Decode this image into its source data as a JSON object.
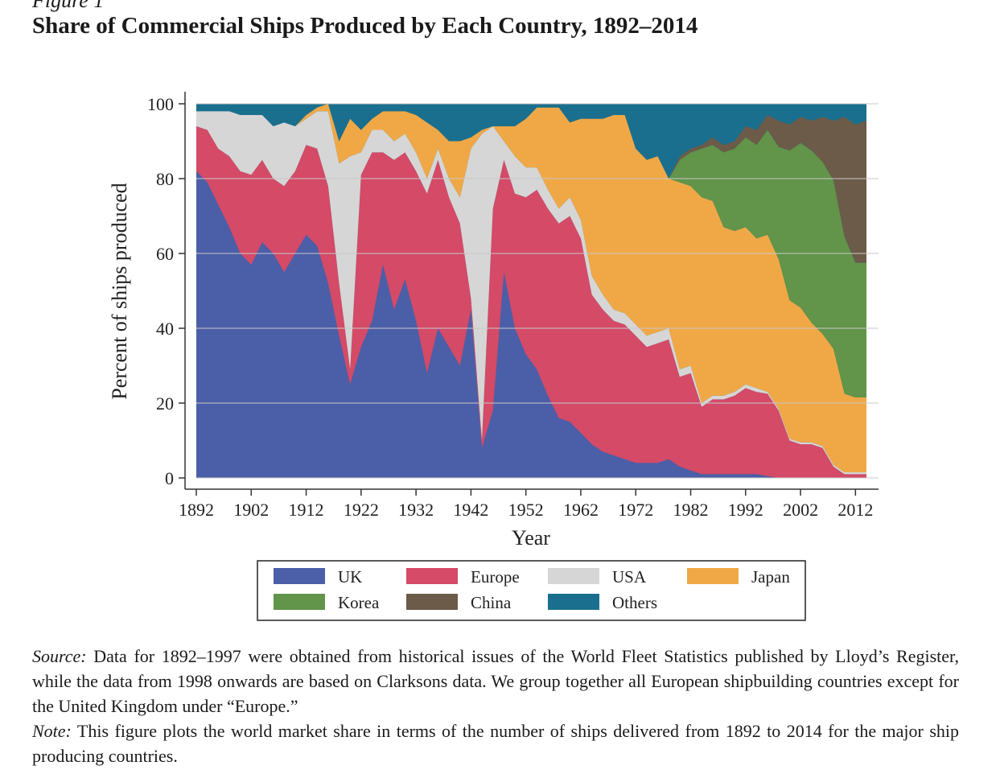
{
  "figure_label": "Figure 1",
  "colors": {
    "UK": "#4b5ea8",
    "Europe": "#d44a67",
    "USA": "#d6d6d6",
    "Japan": "#f0a846",
    "Korea": "#62944a",
    "China": "#6b5b48",
    "Others": "#1a6f8e"
  },
  "chart_data": {
    "type": "area",
    "stacked": true,
    "title": "Share of Commercial Ships Produced by Each Country, 1892–2014",
    "xlabel": "Year",
    "ylabel": "Percent of ships produced",
    "xlim": [
      1892,
      2014
    ],
    "ylim": [
      0,
      100
    ],
    "xticks": [
      "1892",
      "1902",
      "1912",
      "1922",
      "1932",
      "1942",
      "1952",
      "1962",
      "1972",
      "1982",
      "1992",
      "2002",
      "2012"
    ],
    "yticks": [
      "0",
      "20",
      "40",
      "60",
      "80",
      "100"
    ],
    "grid": true,
    "legend_position": "bottom",
    "legend": [
      "UK",
      "Europe",
      "USA",
      "Japan",
      "Korea",
      "China",
      "Others"
    ],
    "x": [
      1892,
      1894,
      1896,
      1898,
      1900,
      1902,
      1904,
      1906,
      1908,
      1910,
      1912,
      1914,
      1916,
      1918,
      1920,
      1922,
      1924,
      1926,
      1928,
      1930,
      1932,
      1934,
      1936,
      1938,
      1940,
      1942,
      1944,
      1946,
      1948,
      1950,
      1952,
      1954,
      1956,
      1958,
      1960,
      1962,
      1964,
      1966,
      1968,
      1970,
      1972,
      1974,
      1976,
      1978,
      1980,
      1982,
      1984,
      1986,
      1988,
      1990,
      1992,
      1994,
      1996,
      1998,
      2000,
      2002,
      2004,
      2006,
      2008,
      2010,
      2012,
      2014
    ],
    "series": [
      {
        "name": "UK",
        "values": [
          82,
          79,
          73,
          67,
          60,
          57,
          63,
          60,
          55,
          60,
          65,
          62,
          52,
          38,
          25,
          35,
          42,
          57,
          45,
          53,
          42,
          28,
          40,
          35,
          30,
          45,
          8,
          18,
          55,
          40,
          33,
          29,
          22,
          16,
          15,
          12,
          9,
          7,
          6,
          5,
          4,
          4,
          4,
          5,
          3,
          2,
          1,
          1,
          1,
          1,
          1,
          1,
          0.5,
          0,
          0,
          0,
          0,
          0,
          0,
          0,
          0,
          0
        ]
      },
      {
        "name": "Europe",
        "values": [
          12,
          14,
          15,
          19,
          22,
          24,
          22,
          20,
          23,
          22,
          24,
          26,
          26,
          14,
          4,
          46,
          45,
          30,
          40,
          34,
          40,
          48,
          45,
          40,
          38,
          3,
          2,
          54,
          30,
          36,
          42,
          48,
          50,
          52,
          55,
          52,
          40,
          38,
          36,
          36,
          34,
          31,
          32,
          32,
          24,
          26,
          18,
          20,
          20,
          21,
          23,
          22,
          22,
          18,
          10,
          9,
          9,
          8,
          3,
          1,
          1,
          1
        ]
      },
      {
        "name": "USA",
        "values": [
          4,
          5,
          10,
          12,
          15,
          16,
          12,
          14,
          17,
          12,
          7,
          10,
          20,
          32,
          57,
          6,
          6,
          6,
          5,
          5,
          5,
          4,
          3,
          5,
          7,
          40,
          82,
          22,
          5,
          10,
          8,
          6,
          5,
          4,
          5,
          5,
          5,
          4,
          3,
          3,
          3,
          3,
          3,
          3,
          2,
          2,
          1,
          1,
          1,
          1,
          1,
          1,
          0.5,
          0.5,
          0.5,
          0.5,
          0.5,
          0.5,
          0.5,
          0.5,
          0.5,
          0.5
        ]
      },
      {
        "name": "Japan",
        "values": [
          0,
          0,
          0,
          0,
          0,
          0,
          0,
          0,
          0,
          0,
          1,
          1,
          2,
          6,
          10,
          6,
          3,
          5,
          8,
          6,
          10,
          15,
          5,
          10,
          15,
          3,
          1,
          0,
          4,
          8,
          13,
          16,
          22,
          27,
          20,
          27,
          42,
          47,
          52,
          53,
          47,
          47,
          47,
          40,
          50,
          48,
          55,
          52,
          45,
          43,
          42,
          40,
          42,
          40,
          37,
          36,
          32,
          30,
          31,
          21,
          20,
          20
        ]
      },
      {
        "name": "Korea",
        "values": [
          0,
          0,
          0,
          0,
          0,
          0,
          0,
          0,
          0,
          0,
          0,
          0,
          0,
          0,
          0,
          0,
          0,
          0,
          0,
          0,
          0,
          0,
          0,
          0,
          0,
          0,
          0,
          0,
          0,
          0,
          0,
          0,
          0,
          0,
          0,
          0,
          0,
          0,
          0,
          0,
          0,
          0,
          0,
          0,
          6,
          9,
          13,
          15,
          20,
          22,
          24,
          25,
          28,
          30,
          40,
          44,
          46,
          46,
          45,
          42,
          36,
          36
        ]
      },
      {
        "name": "China",
        "values": [
          0,
          0,
          0,
          0,
          0,
          0,
          0,
          0,
          0,
          0,
          0,
          0,
          0,
          0,
          0,
          0,
          0,
          0,
          0,
          0,
          0,
          0,
          0,
          0,
          0,
          0,
          0,
          0,
          0,
          0,
          0,
          0,
          0,
          0,
          0,
          0,
          0,
          0,
          0,
          0,
          0,
          0,
          0,
          0,
          1,
          1,
          1,
          2,
          2,
          2,
          3,
          4,
          4,
          7,
          7,
          7,
          8,
          12,
          16,
          32,
          37,
          38
        ]
      },
      {
        "name": "Others",
        "values": [
          2,
          2,
          2,
          2,
          3,
          3,
          3,
          6,
          5,
          6,
          3,
          1,
          0,
          10,
          4,
          7,
          4,
          2,
          2,
          2,
          3,
          5,
          7,
          10,
          10,
          9,
          7,
          6,
          6,
          6,
          4,
          1,
          1,
          1,
          5,
          4,
          4,
          4,
          3,
          3,
          12,
          15,
          14,
          20,
          14,
          12,
          11,
          9,
          11,
          10,
          6,
          7,
          2.5,
          4.5,
          5.5,
          3.5,
          4.5,
          3.5,
          4.5,
          3.5,
          5.5,
          4.5
        ]
      }
    ]
  },
  "caption": {
    "source_label": "Source:",
    "source_text": " Data for 1892–1997 were obtained from historical issues of the World Fleet Statistics published by Lloyd’s Register, while the data from 1998 onwards are based on Clarksons data. We group together all European shipbuilding countries except for the United Kingdom under “Europe.”",
    "note_label": "Note:",
    "note_text": " This figure plots the world market share in terms of the number of ships delivered from 1892 to 2014 for the major ship producing countries."
  }
}
